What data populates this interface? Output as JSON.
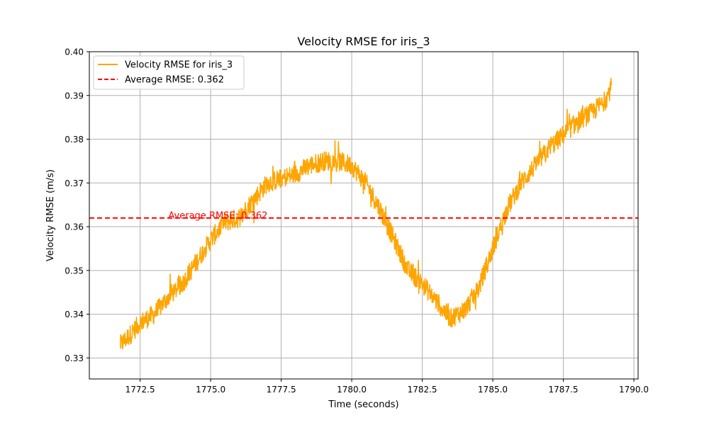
{
  "chart_data": {
    "type": "line",
    "title": "Velocity RMSE for iris_3",
    "xlabel": "Time (seconds)",
    "ylabel": "Velocity RMSE (m/s)",
    "xlim": [
      1770.7,
      1790.15
    ],
    "ylim": [
      0.3252,
      0.4
    ],
    "xticks": [
      1772.5,
      1775.0,
      1777.5,
      1780.0,
      1782.5,
      1785.0,
      1787.5,
      1790.0
    ],
    "xtick_labels": [
      "1772.5",
      "1775.0",
      "1777.5",
      "1780.0",
      "1782.5",
      "1785.0",
      "1787.5",
      "1790.0"
    ],
    "yticks": [
      0.33,
      0.34,
      0.35,
      0.36,
      0.37,
      0.38,
      0.39,
      0.4
    ],
    "ytick_labels": [
      "0.33",
      "0.34",
      "0.35",
      "0.36",
      "0.37",
      "0.38",
      "0.39",
      "0.40"
    ],
    "grid": true,
    "legend_position": "upper-left",
    "series": [
      {
        "name": "Velocity RMSE for iris_3",
        "color": "#ffa500",
        "x": [
          1771.8,
          1772.1,
          1772.5,
          1773.0,
          1773.5,
          1774.0,
          1774.5,
          1775.0,
          1775.5,
          1776.0,
          1776.5,
          1777.0,
          1777.5,
          1778.0,
          1778.5,
          1779.0,
          1779.5,
          1780.0,
          1780.5,
          1781.0,
          1781.5,
          1782.0,
          1782.5,
          1783.0,
          1783.5,
          1784.0,
          1784.5,
          1785.0,
          1785.5,
          1786.0,
          1786.5,
          1787.0,
          1787.5,
          1788.0,
          1788.5,
          1789.0,
          1789.2
        ],
        "y": [
          0.333,
          0.335,
          0.338,
          0.34,
          0.344,
          0.347,
          0.352,
          0.357,
          0.361,
          0.362,
          0.366,
          0.37,
          0.371,
          0.372,
          0.374,
          0.375,
          0.375,
          0.374,
          0.37,
          0.364,
          0.357,
          0.35,
          0.347,
          0.343,
          0.339,
          0.341,
          0.346,
          0.355,
          0.364,
          0.37,
          0.374,
          0.378,
          0.381,
          0.384,
          0.386,
          0.389,
          0.392
        ]
      },
      {
        "name": "Average RMSE: 0.362",
        "color": "#ff0000",
        "style": "dashed",
        "y_constant": 0.362
      }
    ],
    "annotation": {
      "text": "Average RMSE: 0.362",
      "x": 1773.5,
      "y": 0.362,
      "color": "#ff0000"
    }
  }
}
